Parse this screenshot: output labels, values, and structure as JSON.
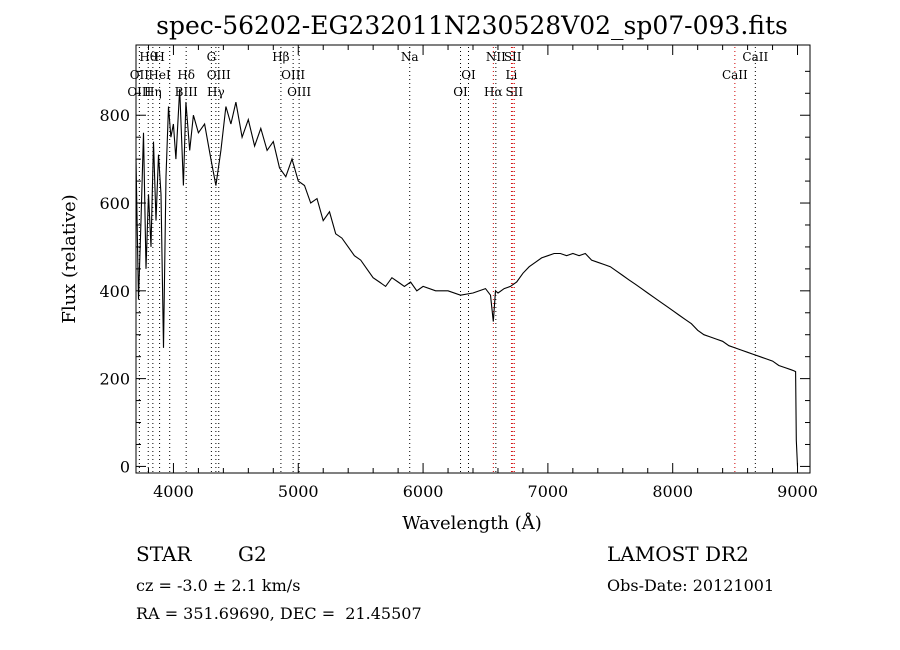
{
  "chart_data": {
    "type": "line",
    "title": "spec-56202-EG232011N230528V02_sp07-093.fits",
    "xlabel": "Wavelength (Å)",
    "ylabel": "Flux (relative)",
    "xlim": [
      3700,
      9100
    ],
    "ylim": [
      -15,
      960
    ],
    "x_ticks": [
      4000,
      5000,
      6000,
      7000,
      8000,
      9000
    ],
    "y_ticks": [
      0,
      200,
      400,
      600,
      800
    ],
    "grid": false,
    "series": [
      {
        "x": [
          3700,
          3720,
          3740,
          3760,
          3780,
          3800,
          3820,
          3840,
          3860,
          3880,
          3900,
          3920,
          3940,
          3960,
          3980,
          4000,
          4020,
          4050,
          4080,
          4100,
          4130,
          4160,
          4200,
          4250,
          4300,
          4340,
          4380,
          4420,
          4460,
          4500,
          4550,
          4600,
          4650,
          4700,
          4750,
          4800,
          4850,
          4900,
          4950,
          5000,
          5050,
          5100,
          5150,
          5200,
          5250,
          5300,
          5350,
          5400,
          5450,
          5500,
          5550,
          5600,
          5650,
          5700,
          5750,
          5800,
          5850,
          5900,
          5950,
          6000,
          6100,
          6200,
          6300,
          6400,
          6500,
          6540,
          6563,
          6580,
          6600,
          6650,
          6700,
          6750,
          6800,
          6850,
          6900,
          6950,
          7000,
          7050,
          7100,
          7150,
          7200,
          7250,
          7300,
          7350,
          7400,
          7450,
          7500,
          7550,
          7600,
          7650,
          7700,
          7750,
          7800,
          7850,
          7900,
          7950,
          8000,
          8050,
          8100,
          8150,
          8200,
          8250,
          8300,
          8350,
          8400,
          8450,
          8500,
          8550,
          8600,
          8650,
          8700,
          8750,
          8800,
          8850,
          8900,
          8950,
          8970,
          8985,
          8990,
          9000
        ],
        "y": [
          700,
          380,
          560,
          760,
          450,
          620,
          500,
          740,
          560,
          710,
          620,
          270,
          660,
          820,
          750,
          780,
          700,
          860,
          640,
          830,
          720,
          800,
          760,
          780,
          700,
          640,
          720,
          820,
          780,
          830,
          750,
          790,
          730,
          770,
          720,
          740,
          680,
          660,
          700,
          650,
          640,
          600,
          610,
          560,
          580,
          530,
          520,
          500,
          480,
          470,
          450,
          430,
          420,
          410,
          430,
          420,
          410,
          420,
          400,
          410,
          400,
          400,
          390,
          395,
          405,
          390,
          330,
          400,
          395,
          405,
          410,
          420,
          440,
          455,
          465,
          475,
          480,
          485,
          485,
          480,
          485,
          480,
          485,
          470,
          465,
          460,
          455,
          445,
          435,
          425,
          415,
          405,
          395,
          385,
          375,
          365,
          355,
          345,
          335,
          325,
          310,
          300,
          295,
          290,
          285,
          275,
          270,
          265,
          260,
          255,
          250,
          245,
          240,
          230,
          225,
          220,
          218,
          216,
          60,
          0
        ]
      }
    ],
    "spectral_lines": {
      "top": [
        {
          "label": "Hθ",
          "x": 3798
        },
        {
          "label": "H",
          "x": 3889
        },
        {
          "label": "G",
          "x": 4304
        },
        {
          "label": "Hβ",
          "x": 4861
        },
        {
          "label": "Na",
          "x": 5893
        },
        {
          "label": "NII",
          "x": 6583
        },
        {
          "label": "SII",
          "x": 6718
        },
        {
          "label": "CaII",
          "x": 8662
        }
      ],
      "middle": [
        {
          "label": "OII",
          "x": 3727
        },
        {
          "label": "HeI",
          "x": 3889
        },
        {
          "label": "Hδ",
          "x": 4102
        },
        {
          "label": "OIII",
          "x": 4363
        },
        {
          "label": "OIII",
          "x": 4959
        },
        {
          "label": "OI",
          "x": 6364
        },
        {
          "label": "Li",
          "x": 6708
        },
        {
          "label": "CaII",
          "x": 8498
        }
      ],
      "bottom": [
        {
          "label": "OIII",
          "x": 3727
        },
        {
          "label": "Hη",
          "x": 3835
        },
        {
          "label": "BIII",
          "x": 4102
        },
        {
          "label": "Hγ",
          "x": 4340
        },
        {
          "label": "OIII",
          "x": 5007
        },
        {
          "label": "OI",
          "x": 6300
        },
        {
          "label": "Hα",
          "x": 6563
        },
        {
          "label": "SII",
          "x": 6731
        }
      ],
      "black_dotted": [
        3727,
        3798,
        3835,
        3889,
        3970,
        4102,
        4304,
        4340,
        4363,
        4861,
        4959,
        5007,
        5893,
        6300,
        6364,
        6583,
        8662
      ],
      "red_dotted": [
        6563,
        6708,
        6718,
        6731,
        8498
      ]
    }
  },
  "info": {
    "object_class": "STAR",
    "subclass": "G2",
    "survey": "LAMOST DR2",
    "redshift": "cz = -3.0 ± 2.1 km/s",
    "obs_date": "Obs-Date: 20121001",
    "coords": "RA = 351.69690, DEC =  21.45507"
  }
}
